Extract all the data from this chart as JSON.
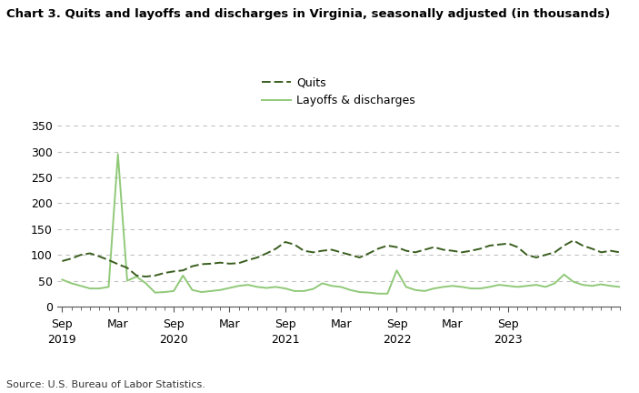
{
  "title": "Chart 3. Quits and layoffs and discharges in Virginia, seasonally adjusted (in thousands)",
  "source": "Source: U.S. Bureau of Labor Statistics.",
  "legend_quits": "Quits",
  "legend_layoffs": "Layoffs & discharges",
  "quits_color": "#3a5e1f",
  "layoffs_color": "#90c978",
  "background_color": "#ffffff",
  "ylim": [
    0,
    350
  ],
  "yticks": [
    0,
    50,
    100,
    150,
    200,
    250,
    300,
    350
  ],
  "grid_color": "#c0c0c0",
  "quits": [
    88,
    93,
    100,
    103,
    97,
    90,
    82,
    75,
    60,
    58,
    60,
    65,
    68,
    70,
    78,
    82,
    83,
    85,
    83,
    84,
    90,
    95,
    103,
    112,
    125,
    120,
    108,
    105,
    108,
    110,
    105,
    100,
    95,
    103,
    112,
    118,
    115,
    108,
    105,
    110,
    115,
    110,
    108,
    105,
    108,
    112,
    118,
    120,
    122,
    115,
    100,
    95,
    100,
    105,
    118,
    128,
    118,
    112,
    105,
    108,
    105
  ],
  "layoffs": [
    52,
    45,
    40,
    35,
    35,
    38,
    295,
    50,
    58,
    45,
    27,
    28,
    30,
    60,
    32,
    28,
    30,
    32,
    36,
    40,
    42,
    38,
    36,
    38,
    35,
    30,
    30,
    34,
    45,
    40,
    38,
    32,
    28,
    27,
    25,
    25,
    70,
    38,
    32,
    30,
    35,
    38,
    40,
    38,
    35,
    35,
    38,
    42,
    40,
    38,
    40,
    42,
    38,
    45,
    62,
    48,
    42,
    40,
    43,
    40,
    38
  ],
  "x_month_labels": [
    "Sep",
    "Mar",
    "Sep",
    "Mar",
    "Sep",
    "Mar",
    "Sep",
    "Mar",
    "Sep"
  ],
  "x_year_labels": [
    "2019",
    "",
    "2020",
    "",
    "2021",
    "",
    "2022",
    "",
    "2023"
  ],
  "x_tick_positions": [
    0,
    6,
    12,
    18,
    24,
    30,
    36,
    42,
    48
  ]
}
